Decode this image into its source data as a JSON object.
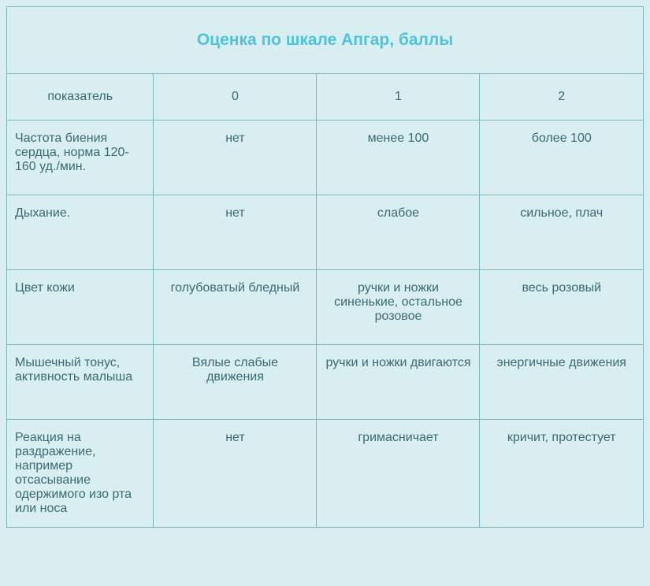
{
  "title": "Оценка по шкале Апгар, баллы",
  "table": {
    "columns": [
      "показатель",
      "0",
      "1",
      "2"
    ],
    "rows": [
      [
        "Частота биения сердца, норма 120-160 уд./мин.",
        "нет",
        "менее 100",
        "более 100"
      ],
      [
        "Дыхание.",
        "нет",
        "слабое",
        "сильное, плач"
      ],
      [
        "Цвет кожи",
        "голубоватый бледный",
        "ручки и ножки синенькие, остальное розовое",
        "весь розовый"
      ],
      [
        "Мышечный тонус, активность малыша",
        "Вялые слабые движения",
        "ручки и ножки двигаются",
        "энергичные движения"
      ],
      [
        "Реакция на раздражение, например отсасывание одержимого изо рта или носа",
        "нет",
        "гримасничает",
        "кричит, протестует"
      ]
    ],
    "styling": {
      "background_color": "#d9eef0",
      "border_color": "#7ab8c0",
      "title_color": "#4fc3d9",
      "text_color": "#3a6a72",
      "title_fontsize": 21,
      "cell_fontsize": 16,
      "column_widths_pct": [
        23,
        25.6,
        25.6,
        25.6
      ],
      "label_align": "left",
      "value_align": "center"
    }
  }
}
